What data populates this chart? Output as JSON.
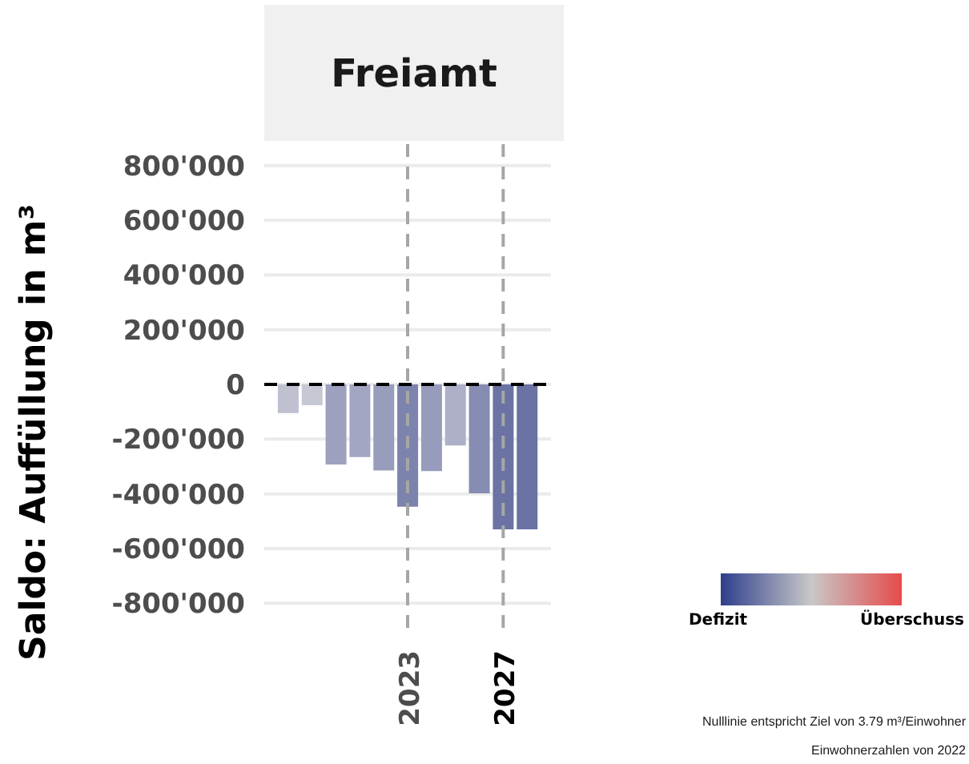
{
  "chart_data": {
    "type": "bar",
    "title": "Freiamt",
    "ylabel": "Saldo: Auffüllung in m³",
    "x": [
      2018,
      2019,
      2020,
      2021,
      2022,
      2023,
      2024,
      2025,
      2026,
      2027,
      2028
    ],
    "values": [
      -105000,
      -76000,
      -293000,
      -266000,
      -315000,
      -447000,
      -317000,
      -223000,
      -398000,
      -530000,
      -530000
    ],
    "colors": [
      "#bfc1d1",
      "#c6c8d4",
      "#9da1bf",
      "#a2a6c2",
      "#989dbc",
      "#7c83ad",
      "#989cbc",
      "#adb0c8",
      "#868cb2",
      "#6a73a3",
      "#6a73a3"
    ],
    "xlim": [
      2017,
      2029
    ],
    "xticks": [
      2023,
      2027
    ],
    "ylim": [
      -890000,
      890000
    ],
    "yticks": [
      {
        "value": -800000,
        "label": "-800'000"
      },
      {
        "value": -600000,
        "label": "-600'000"
      },
      {
        "value": -400000,
        "label": "-400'000"
      },
      {
        "value": -200000,
        "label": "-200'000"
      },
      0,
      {
        "value": 200000,
        "label": "200'000"
      },
      {
        "value": 400000,
        "label": "400'000"
      },
      {
        "value": 600000,
        "label": "600'000"
      },
      {
        "value": 800000,
        "label": "800'000"
      }
    ],
    "grid": "y",
    "ref_lines": [
      {
        "axis": "x",
        "value": 2023,
        "color": "#a6a6a6",
        "line_style": "dashed"
      },
      {
        "axis": "x",
        "value": 2027,
        "color": "#a6a6a6",
        "line_style": "dashed"
      },
      {
        "axis": "y",
        "value": 0,
        "color": "#000000",
        "line_style": "dashed"
      }
    ],
    "annotations": [
      "Defizit",
      "Überschuss",
      "Nulllinie entspricht Ziel von 3.79 m³/Einwohner",
      "Einwohnerzahlen von 2022"
    ]
  }
}
